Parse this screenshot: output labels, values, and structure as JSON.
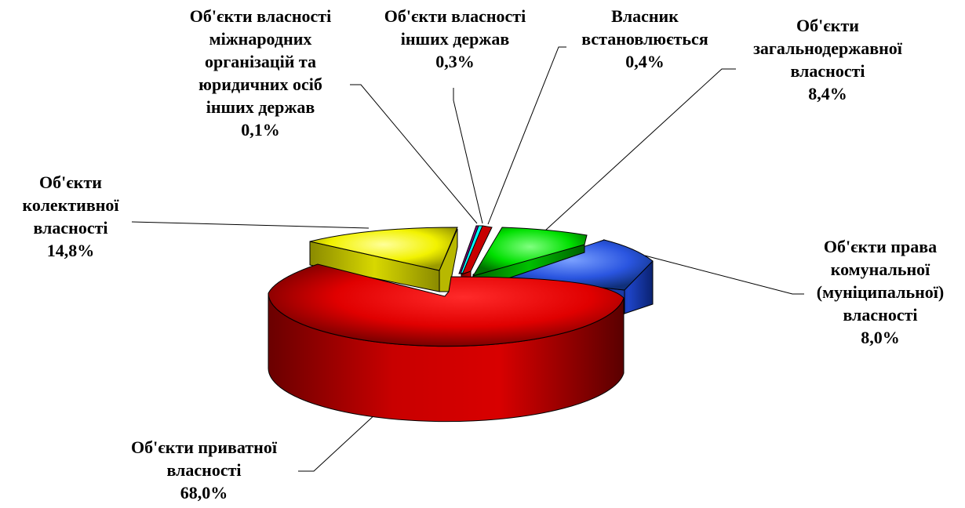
{
  "chart_data": {
    "type": "pie",
    "style": "3d-exploded",
    "legend": "none",
    "slices": [
      {
        "name": [
          "Об'єкти приватної",
          "власності"
        ],
        "value_label": "68,0%",
        "value": 68.0,
        "color": "#ff0000"
      },
      {
        "name": [
          "Об'єкти",
          "колективної",
          "власності"
        ],
        "value_label": "14,8%",
        "value": 14.8,
        "color": "#ffff00"
      },
      {
        "name": [
          "Об'єкти власності",
          "міжнародних",
          "організацій та",
          "юридичних осіб",
          "інших держав"
        ],
        "value_label": "0,1%",
        "value": 0.1,
        "color": "#800080"
      },
      {
        "name": [
          "Об'єкти власності",
          "інших держав"
        ],
        "value_label": "0,3%",
        "value": 0.3,
        "color": "#00ffff"
      },
      {
        "name": [
          "Власник",
          "встановлюється"
        ],
        "value_label": "0,4%",
        "value": 0.4,
        "color": "#ff0000"
      },
      {
        "name": [
          "Об'єкти",
          "загальнодержавної",
          "власності"
        ],
        "value_label": "8,4%",
        "value": 8.4,
        "color": "#00ff00"
      },
      {
        "name": [
          "Об'єкти права",
          "комунальної",
          "(муніципальної)",
          "власності"
        ],
        "value_label": "8,0%",
        "value": 8.0,
        "color": "#3366ff"
      }
    ]
  }
}
